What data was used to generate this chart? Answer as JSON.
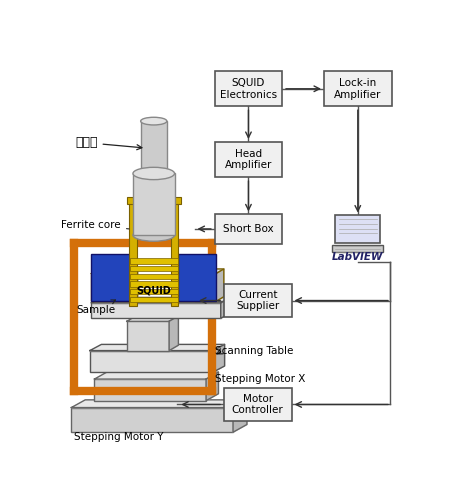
{
  "bg_color": "#ffffff",
  "colors": {
    "box_edge": "#555555",
    "box_fill": "#f0f0f0",
    "orange_frame": "#d4700a",
    "yellow_coil": "#e0c000",
    "blue_core": "#2244aa",
    "gold_coil": "#c8a000",
    "cooler_body": "#d8d8d8",
    "cooler_top": "#e8e8e8",
    "wire": "#555555",
    "arrow": "#333333",
    "labview_bg": "#d0d0e0"
  },
  "labels": {
    "cooler": "冷却部",
    "ferrite": "Ferrite core",
    "sample": "Sample",
    "squid": "SQUID",
    "scanning": "Scanning Table",
    "motor_x": "Stepping Motor X",
    "motor_y": "Stepping Motor Y",
    "squid_elec": "SQUID\nElectronics",
    "lock_in": "Lock-in\nAmplifier",
    "head_amp": "Head\nAmplifier",
    "short_box": "Short Box",
    "current_sup": "Current\nSupplier",
    "motor_ctrl": "Motor\nController",
    "labview": "LabVIEW"
  }
}
